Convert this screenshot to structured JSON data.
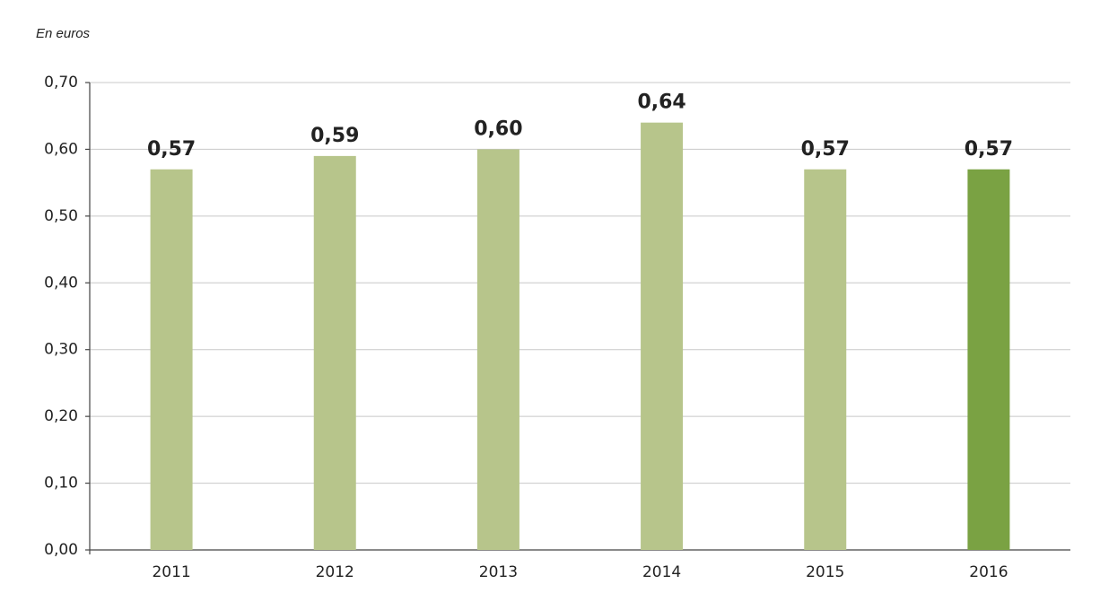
{
  "chart_data": {
    "type": "bar",
    "subtitle": "En euros",
    "categories": [
      "2011",
      "2012",
      "2013",
      "2014",
      "2015",
      "2016"
    ],
    "values": [
      0.57,
      0.59,
      0.6,
      0.64,
      0.57,
      0.57
    ],
    "value_labels": [
      "0,57",
      "0,59",
      "0,60",
      "0,64",
      "0,57",
      "0,57"
    ],
    "colors": [
      "#b7c58b",
      "#b7c58b",
      "#b7c58b",
      "#b7c58b",
      "#b7c58b",
      "#7aa243"
    ],
    "ylim": [
      0,
      0.7
    ],
    "yticks": [
      {
        "value": 0,
        "label": "0,00"
      },
      {
        "value": 0.1,
        "label": "0,10"
      },
      {
        "value": 0.2,
        "label": "0,20"
      },
      {
        "value": 0.3,
        "label": "0,30"
      },
      {
        "value": 0.4,
        "label": "0,40"
      },
      {
        "value": 0.5,
        "label": "0,50"
      },
      {
        "value": 0.6,
        "label": "0,60"
      },
      {
        "value": 0.7,
        "label": "0,70"
      }
    ],
    "grid": true
  }
}
